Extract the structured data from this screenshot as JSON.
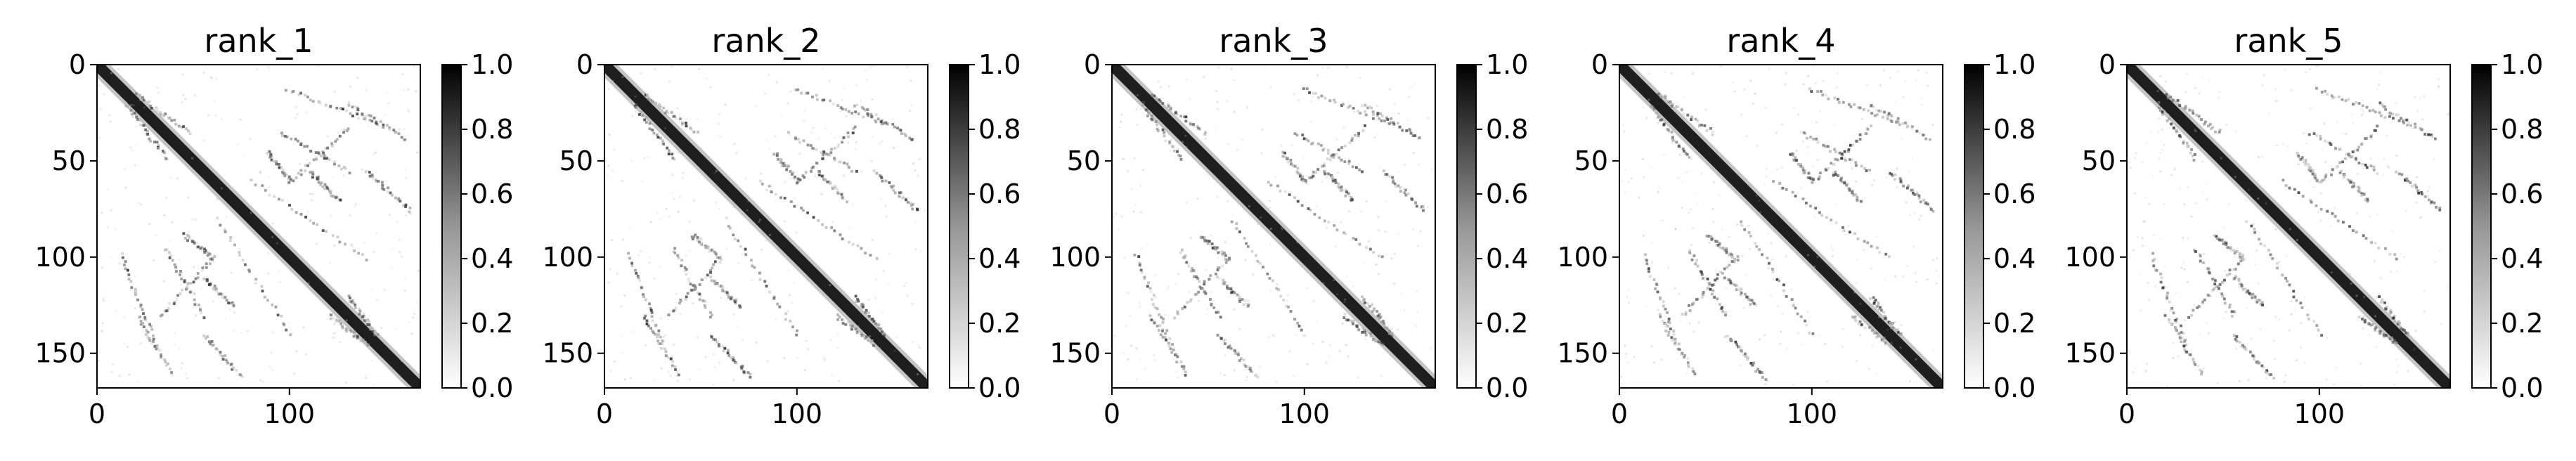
{
  "chart_data": [
    {
      "type": "heatmap",
      "title": "rank_1",
      "seed": 1,
      "xlim": [
        0,
        168
      ],
      "ylim": [
        168,
        0
      ],
      "xticks": [
        0,
        100
      ],
      "yticks": [
        0,
        50,
        100,
        150
      ],
      "colorbar": {
        "min": 0.0,
        "max": 1.0,
        "ticks": [
          "0.0",
          "0.2",
          "0.4",
          "0.6",
          "0.8",
          "1.0"
        ],
        "cmap": "Greys"
      }
    },
    {
      "type": "heatmap",
      "title": "rank_2",
      "seed": 2,
      "xlim": [
        0,
        168
      ],
      "ylim": [
        168,
        0
      ],
      "xticks": [
        0,
        100
      ],
      "yticks": [
        0,
        50,
        100,
        150
      ],
      "colorbar": {
        "min": 0.0,
        "max": 1.0,
        "ticks": [
          "0.0",
          "0.2",
          "0.4",
          "0.6",
          "0.8",
          "1.0"
        ],
        "cmap": "Greys"
      }
    },
    {
      "type": "heatmap",
      "title": "rank_3",
      "seed": 3,
      "xlim": [
        0,
        168
      ],
      "ylim": [
        168,
        0
      ],
      "xticks": [
        0,
        100
      ],
      "yticks": [
        0,
        50,
        100,
        150
      ],
      "colorbar": {
        "min": 0.0,
        "max": 1.0,
        "ticks": [
          "0.0",
          "0.2",
          "0.4",
          "0.6",
          "0.8",
          "1.0"
        ],
        "cmap": "Greys"
      }
    },
    {
      "type": "heatmap",
      "title": "rank_4",
      "seed": 4,
      "xlim": [
        0,
        168
      ],
      "ylim": [
        168,
        0
      ],
      "xticks": [
        0,
        100
      ],
      "yticks": [
        0,
        50,
        100,
        150
      ],
      "colorbar": {
        "min": 0.0,
        "max": 1.0,
        "ticks": [
          "0.0",
          "0.2",
          "0.4",
          "0.6",
          "0.8",
          "1.0"
        ],
        "cmap": "Greys"
      }
    },
    {
      "type": "heatmap",
      "title": "rank_5",
      "seed": 5,
      "xlim": [
        0,
        168
      ],
      "ylim": [
        168,
        0
      ],
      "xticks": [
        0,
        100
      ],
      "yticks": [
        0,
        50,
        100,
        150
      ],
      "colorbar": {
        "min": 0.0,
        "max": 1.0,
        "ticks": [
          "0.0",
          "0.2",
          "0.4",
          "0.6",
          "0.8",
          "1.0"
        ],
        "cmap": "Greys"
      }
    }
  ]
}
